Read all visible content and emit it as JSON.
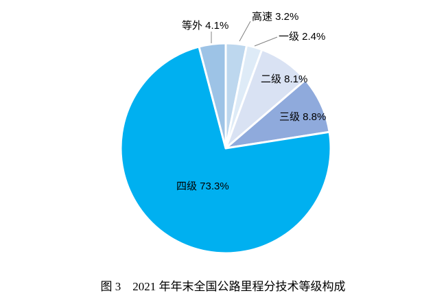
{
  "page": {
    "background_color": "#ffffff"
  },
  "caption": {
    "text": "图 3　2021 年年末全国公路里程分技术等级构成"
  },
  "chart_data": {
    "type": "pie",
    "title": "图 3　2021 年年末全国公路里程分技术等级构成",
    "unit": "%",
    "direction": "clockwise",
    "start_angle_deg_from_top": 0,
    "legend": "none",
    "label_color": "#000000",
    "leader_line_color": "#808080",
    "slice_border_color": "#ffffff",
    "slices": [
      {
        "name": "高速",
        "value": 3.2,
        "color": "#BDD7EE",
        "display": "高速 3.2%",
        "label_placement": "outside-leader"
      },
      {
        "name": "一级",
        "value": 2.4,
        "color": "#DEEBF7",
        "display": "一级 2.4%",
        "label_placement": "outside-leader"
      },
      {
        "name": "二级",
        "value": 8.1,
        "color": "#D9E2F3",
        "display": "二级 8.1%",
        "label_placement": "inside"
      },
      {
        "name": "三级",
        "value": 8.8,
        "color": "#8FAADC",
        "display": "三级 8.8%",
        "label_placement": "inside"
      },
      {
        "name": "四级",
        "value": 73.3,
        "color": "#00B0F0",
        "display": "四级 73.3%",
        "label_placement": "inside"
      },
      {
        "name": "等外",
        "value": 4.1,
        "color": "#9DC3E6",
        "display": "等外 4.1%",
        "label_placement": "outside-leader"
      }
    ]
  }
}
